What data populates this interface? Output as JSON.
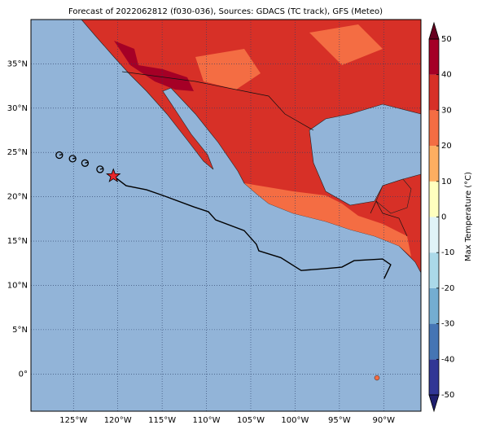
{
  "map": {
    "type": "map",
    "title": "Forecast of 2022062812 (f030-036), Sources: GDACS (TC track), GFS (Meteo)",
    "xlim": [
      -129.8,
      -85.8
    ],
    "ylim": [
      -4.2,
      40
    ],
    "xticks": [
      {
        "value": -125,
        "label": "125°W"
      },
      {
        "value": -120,
        "label": "120°W"
      },
      {
        "value": -115,
        "label": "115°W"
      },
      {
        "value": -110,
        "label": "110°W"
      },
      {
        "value": -105,
        "label": "105°W"
      },
      {
        "value": -100,
        "label": "100°W"
      },
      {
        "value": -95,
        "label": "95°W"
      },
      {
        "value": -90,
        "label": "90°W"
      }
    ],
    "yticks": [
      {
        "value": 0,
        "label": "0°"
      },
      {
        "value": 5,
        "label": "5°N"
      },
      {
        "value": 10,
        "label": "10°N"
      },
      {
        "value": 15,
        "label": "15°N"
      },
      {
        "value": 20,
        "label": "20°N"
      },
      {
        "value": 25,
        "label": "25°N"
      },
      {
        "value": 30,
        "label": "30°N"
      },
      {
        "value": 35,
        "label": "35°N"
      }
    ],
    "grid": true,
    "track": {
      "lon": [
        -120.5,
        -119.06,
        -116.76,
        -114.92,
        -111.43,
        -109.78,
        -108.96,
        -105.74,
        -104.36,
        -104.09,
        -101.61,
        -99.31,
        -96.74,
        -94.72,
        -93.34,
        -90.13,
        -89.21,
        -89.95
      ],
      "lat": [
        22.35,
        21.25,
        20.79,
        20.15,
        18.86,
        18.31,
        17.39,
        16.18,
        14.63,
        13.9,
        13.13,
        11.68,
        11.88,
        12.06,
        12.79,
        12.98,
        12.33,
        10.77
      ]
    },
    "past_positions": {
      "lon": [
        -126.6,
        -125.1,
        -123.7,
        -122.0
      ],
      "lat": [
        24.7,
        24.3,
        23.8,
        23.1
      ]
    },
    "current_position": {
      "lon": -120.5,
      "lat": 22.35,
      "color": "#e8262b"
    },
    "colorbar": {
      "label": "Max Temperature (°C)",
      "lim": [
        -50,
        50
      ],
      "ticks": [
        -50,
        -40,
        -30,
        -20,
        -10,
        0,
        10,
        20,
        30,
        40,
        50
      ],
      "colors": [
        "#313695",
        "#4575b4",
        "#74add1",
        "#abd9e9",
        "#e0f3f8",
        "#ffffbf",
        "#fdae61",
        "#f46d43",
        "#d73027",
        "#a50026"
      ],
      "under_color": "#1f1f6e",
      "over_color": "#67001f"
    }
  }
}
